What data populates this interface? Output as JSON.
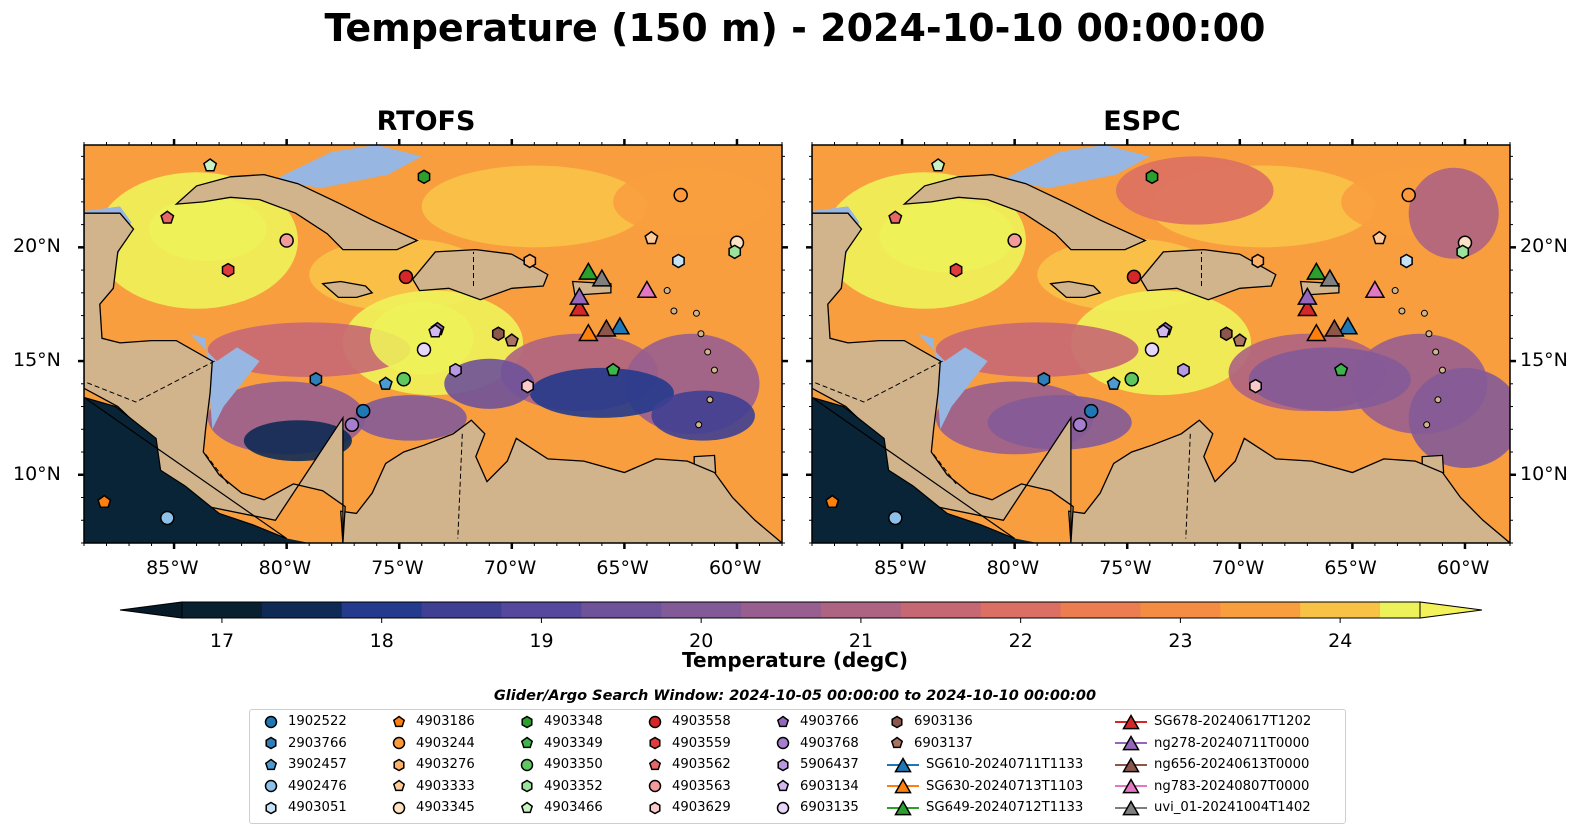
{
  "title": "Temperature (150 m) - 2024-10-10 00:00:00",
  "panels": [
    {
      "title": "RTOFS"
    },
    {
      "title": "ESPC"
    }
  ],
  "map_extent": {
    "lon": [
      -89,
      -58
    ],
    "lat": [
      7,
      24.5
    ]
  },
  "axes": {
    "lon_ticks": [
      "85°W",
      "80°W",
      "75°W",
      "70°W",
      "65°W",
      "60°W"
    ],
    "lon_values": [
      -85,
      -80,
      -75,
      -70,
      -65,
      -60
    ],
    "lat_ticks": [
      "20°N",
      "15°N",
      "10°N"
    ],
    "lat_values": [
      20,
      15,
      10
    ]
  },
  "colorbar": {
    "label": "Temperature (degC)",
    "ticks": [
      "17",
      "18",
      "19",
      "20",
      "21",
      "22",
      "23",
      "24"
    ],
    "range": [
      16.75,
      24.5
    ],
    "step": 0.5,
    "extend": "both",
    "colors": [
      "#082030",
      "#0e2a55",
      "#243a8c",
      "#3f3f94",
      "#56489c",
      "#6e529a",
      "#835a98",
      "#985e8f",
      "#ad6382",
      "#c66874",
      "#dc6f63",
      "#ec7d50",
      "#f48c43",
      "#f89e3e",
      "#f8c247",
      "#eef25a"
    ],
    "under_color": "#061a28",
    "over_color": "#f4f25a"
  },
  "map_colors": {
    "land": "#d2b48c",
    "shallow_water": "#97b6e2",
    "deep_ocean": "#082436",
    "coastline": "#000000",
    "borders": "#000000"
  },
  "search_window": "Glider/Argo Search Window: 2024-10-05 00:00:00 to 2024-10-10 00:00:00",
  "legend": {
    "columns": [
      [
        {
          "label": "1902522",
          "marker": "circle",
          "color": "#1f77b4"
        },
        {
          "label": "2903766",
          "marker": "hexagon",
          "color": "#2c7fb8"
        },
        {
          "label": "3902457",
          "marker": "pentagon",
          "color": "#4b9bd1"
        },
        {
          "label": "4902476",
          "marker": "circle",
          "color": "#8ec1ea"
        },
        {
          "label": "4903051",
          "marker": "hexagon",
          "color": "#c6e2f7"
        }
      ],
      [
        {
          "label": "4903186",
          "marker": "pentagon",
          "color": "#ff7f0e"
        },
        {
          "label": "4903244",
          "marker": "circle",
          "color": "#ff9a3c"
        },
        {
          "label": "4903276",
          "marker": "hexagon",
          "color": "#ffb065"
        },
        {
          "label": "4903333",
          "marker": "pentagon",
          "color": "#ffcc99"
        },
        {
          "label": "4903345",
          "marker": "circle",
          "color": "#ffe2c6"
        }
      ],
      [
        {
          "label": "4903348",
          "marker": "hexagon",
          "color": "#2ca02c"
        },
        {
          "label": "4903349",
          "marker": "pentagon",
          "color": "#3cb54a"
        },
        {
          "label": "4903350",
          "marker": "circle",
          "color": "#5fc75f"
        },
        {
          "label": "4903352",
          "marker": "hexagon",
          "color": "#9be39b"
        },
        {
          "label": "4903466",
          "marker": "pentagon",
          "color": "#c8f2c4"
        }
      ],
      [
        {
          "label": "4903558",
          "marker": "circle",
          "color": "#d62728"
        },
        {
          "label": "4903559",
          "marker": "hexagon",
          "color": "#e03c3c"
        },
        {
          "label": "4903562",
          "marker": "pentagon",
          "color": "#e86666"
        },
        {
          "label": "4903563",
          "marker": "circle",
          "color": "#f49a9a"
        },
        {
          "label": "4903629",
          "marker": "hexagon",
          "color": "#fbcaca"
        }
      ],
      [
        {
          "label": "4903766",
          "marker": "pentagon",
          "color": "#9467bd"
        },
        {
          "label": "4903768",
          "marker": "circle",
          "color": "#a57ecf"
        },
        {
          "label": "5906437",
          "marker": "hexagon",
          "color": "#b898e0"
        },
        {
          "label": "6903134",
          "marker": "pentagon",
          "color": "#d3b8f0"
        },
        {
          "label": "6903135",
          "marker": "circle",
          "color": "#e6d6f8"
        }
      ],
      [
        {
          "label": "6903136",
          "marker": "hexagon",
          "color": "#8c564b"
        },
        {
          "label": "6903137",
          "marker": "pentagon",
          "color": "#a97262"
        },
        {
          "label": "SG610-20240711T1133",
          "marker": "triangle",
          "color": "#1f77b4",
          "line": true
        },
        {
          "label": "SG630-20240713T1103",
          "marker": "triangle",
          "color": "#ff7f0e",
          "line": true
        },
        {
          "label": "SG649-20240712T1133",
          "marker": "triangle",
          "color": "#2ca02c",
          "line": true
        }
      ],
      [
        {
          "label": "SG678-20240617T1202",
          "marker": "triangle",
          "color": "#d62728",
          "line": true
        },
        {
          "label": "ng278-20240711T0000",
          "marker": "triangle",
          "color": "#9467bd",
          "line": true
        },
        {
          "label": "ng656-20240613T0000",
          "marker": "triangle",
          "color": "#8c564b",
          "line": true
        },
        {
          "label": "ng783-20240807T0000",
          "marker": "triangle",
          "color": "#e377c2",
          "line": true
        },
        {
          "label": "uvi_01-20241004T1402",
          "marker": "triangle",
          "color": "#7f7f7f",
          "line": true
        }
      ]
    ]
  },
  "observations": [
    {
      "id": "1902522",
      "lon": -76.6,
      "lat": 12.8
    },
    {
      "id": "2903766",
      "lon": -78.7,
      "lat": 14.2
    },
    {
      "id": "3902457",
      "lon": -75.6,
      "lat": 14.0
    },
    {
      "id": "4902476",
      "lon": -85.3,
      "lat": 8.1
    },
    {
      "id": "4903051",
      "lon": -62.6,
      "lat": 19.4
    },
    {
      "id": "4903186",
      "lon": -88.1,
      "lat": 8.8
    },
    {
      "id": "4903244",
      "lon": -62.5,
      "lat": 22.3
    },
    {
      "id": "4903276",
      "lon": -69.2,
      "lat": 19.4
    },
    {
      "id": "4903333",
      "lon": -63.8,
      "lat": 20.4
    },
    {
      "id": "4903345",
      "lon": -60.0,
      "lat": 20.2
    },
    {
      "id": "4903348",
      "lon": -73.9,
      "lat": 23.1
    },
    {
      "id": "4903349",
      "lon": -65.5,
      "lat": 14.6
    },
    {
      "id": "4903350",
      "lon": -74.8,
      "lat": 14.2
    },
    {
      "id": "4903352",
      "lon": -60.1,
      "lat": 19.8
    },
    {
      "id": "4903466",
      "lon": -83.4,
      "lat": 23.6
    },
    {
      "id": "4903558",
      "lon": -74.7,
      "lat": 18.7
    },
    {
      "id": "4903559",
      "lon": -82.6,
      "lat": 19.0
    },
    {
      "id": "4903562",
      "lon": -85.3,
      "lat": 21.3
    },
    {
      "id": "4903563",
      "lon": -80.0,
      "lat": 20.3
    },
    {
      "id": "4903629",
      "lon": -69.3,
      "lat": 13.9
    },
    {
      "id": "4903766",
      "lon": -73.3,
      "lat": 16.4
    },
    {
      "id": "4903768",
      "lon": -77.1,
      "lat": 12.2
    },
    {
      "id": "5906437",
      "lon": -72.5,
      "lat": 14.6
    },
    {
      "id": "6903134",
      "lon": -73.4,
      "lat": 16.3
    },
    {
      "id": "6903135",
      "lon": -73.9,
      "lat": 15.5
    },
    {
      "id": "6903136",
      "lon": -70.6,
      "lat": 16.2
    },
    {
      "id": "6903137",
      "lon": -70.0,
      "lat": 15.9
    },
    {
      "id": "SG610-20240711T1133",
      "lon": -65.2,
      "lat": 16.5
    },
    {
      "id": "SG630-20240713T1103",
      "lon": -66.6,
      "lat": 16.2
    },
    {
      "id": "SG649-20240712T1133",
      "lon": -66.6,
      "lat": 18.9
    },
    {
      "id": "SG678-20240617T1202",
      "lon": -67.0,
      "lat": 17.3
    },
    {
      "id": "ng278-20240711T0000",
      "lon": -67.0,
      "lat": 17.8
    },
    {
      "id": "ng656-20240613T0000",
      "lon": -65.8,
      "lat": 16.4
    },
    {
      "id": "ng783-20240807T0000",
      "lon": -64.0,
      "lat": 18.1
    },
    {
      "id": "uvi_01-20241004T1402",
      "lon": -66.0,
      "lat": 18.6
    }
  ]
}
